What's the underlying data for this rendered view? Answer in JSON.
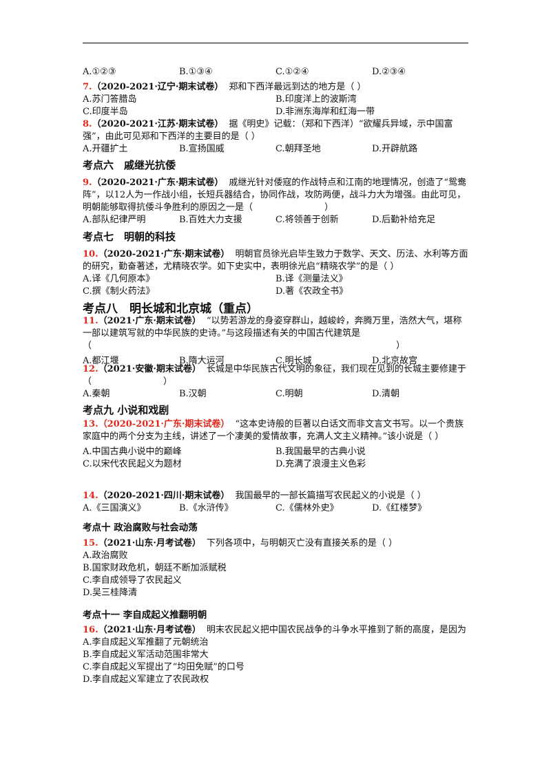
{
  "continued_options": [
    "A.①②③",
    "B.①③④",
    "C.①②④",
    "D.②③④"
  ],
  "sections": [
    {
      "questions": [
        {
          "number": "7.",
          "source": "（2020-2021·辽宁·期末试卷）",
          "stem": "郑和下西洋最远到达的地方是（ ）",
          "options": [
            "A.苏门答腊岛",
            "B.印度洋上的波斯湾",
            "C.印度半岛",
            "D.非洲东海岸和红海一带"
          ]
        },
        {
          "number": "8.",
          "source": "（2020-2021·江苏·期末试卷）",
          "stem": "据《明史》记载：（郑和下西洋）“欲耀兵异域，示中国富强”，由此可见郑和下西洋的主要目的是（ ）",
          "options": [
            "A.开疆扩土",
            "B.宣扬国威",
            "C.朝拜圣地",
            "D.开辟航路"
          ]
        }
      ]
    },
    {
      "heading": "考点六　戚继光抗倭",
      "questions": [
        {
          "number": "9.",
          "source": "（2020-2021·广东·期末试卷）",
          "stem": "戚继光针对倭寇的作战特点和江南的地理情况，创造了“鸳鸯阵”，以12人为一作战小组，长短兵器结合，协同作战，攻防两便，战斗力大为增强。由此可见，明朝能够取得抗倭斗争胜利的原因之一是（　　　　　　　　）",
          "options": [
            "A.部队纪律严明",
            "B.百姓大力支援",
            "C.将领善于创新",
            "D.后勤补给充足"
          ]
        }
      ]
    },
    {
      "heading": "考点七　明朝的科技",
      "questions": [
        {
          "number": "10.",
          "source": "（2020-2021·广东·期末试卷）",
          "stem": "明朝官员徐光启毕生致力于数学、天文、历法、水利等方面的研究，勤奋著述，尤精晓农学。如下史实中，表明徐光启“精晓农学”的是（ ）",
          "options": [
            "A.译《几何原本》",
            "B.译《测量法义》",
            "C.撰《制火药法》",
            "D.著《农政全书》"
          ]
        }
      ]
    },
    {
      "heading": "考点八　明长城和北京城（重点）",
      "questions": [
        {
          "number": "11.",
          "source": "（2021·广东·期末试卷）",
          "stem": "“以势若游龙的身姿穿群山，越峻岭，奔腾万里，浩然大气，堪称一部以建筑写就的中华民族的史诗。”与这段描述有关的中国古代建筑是（　　　　　　　　　　　　　　　　　　　　　　　　　　　　　　　　　　）",
          "options": [
            "A.都江堰",
            "B.隋大运河",
            "C.明长城",
            "D.北京故宫"
          ]
        },
        {
          "number": "12.",
          "source": "（2021·安徽·期末试卷）",
          "stem": "长城是中华民族古代文明的象征，我们现在见到的长城主要修建于（　　　　　　　　）",
          "options": [
            "A.秦朝",
            "B.汉朝",
            "C.明朝",
            "D.清朝"
          ]
        }
      ]
    },
    {
      "heading": "考点九 小说和戏剧",
      "questions": [
        {
          "number": "13.",
          "source": "（2020-2021·广东·期末试卷）",
          "source_color": "#e0261b",
          "stem": "“这本史诗般的巨著以白话文而非文言文书写。以一个贵族家庭中的两个分支为主线，讲述了一个凄美的爱情故事，充满人文主义精神。”该小说是（ ）",
          "options": [
            "A.中国古典小说中的巅峰",
            "B.我国最早的古典小说",
            "C.以宋代农民起义为题材",
            "D.充满了浪漫主义色彩"
          ]
        },
        {
          "number": "14.",
          "source": "（2020-2021·四川·期末试卷）",
          "stem": "我国最早的一部长篇描写农民起义的小说是（ ）",
          "options": [
            "A.《三国演义》",
            "B.《水浒传》",
            "C.《儒林外史》",
            "D.《红楼梦》"
          ]
        }
      ]
    },
    {
      "heading": "考点十 政治腐败与社会动荡",
      "questions": [
        {
          "number": "15.",
          "source": "（2021·山东·月考试卷）",
          "stem": "下列各项中，与明朝灭亡没有直接关系的是（ ）",
          "options": [
            "A.政治腐败",
            "B.国家财政危机，朝廷不断加派赋税",
            "C.李自成领导了农民起义",
            "D.吴三桂降清"
          ]
        }
      ]
    },
    {
      "heading": "考点十一 李自成起义推翻明朝",
      "questions": [
        {
          "number": "16.",
          "source": "（2021·山东·月考试卷）",
          "stem": "明末农民起义把中国农民战争的斗争水平推到了新的高度，是因为",
          "options": [
            "A.李自成起义军推翻了元朝统治",
            "B.李自成起义军活动范围非常大",
            "C.李自成起义军提出了“均田免赋”的口号",
            "D.李自成起义军建立了农民政权"
          ]
        }
      ]
    }
  ]
}
